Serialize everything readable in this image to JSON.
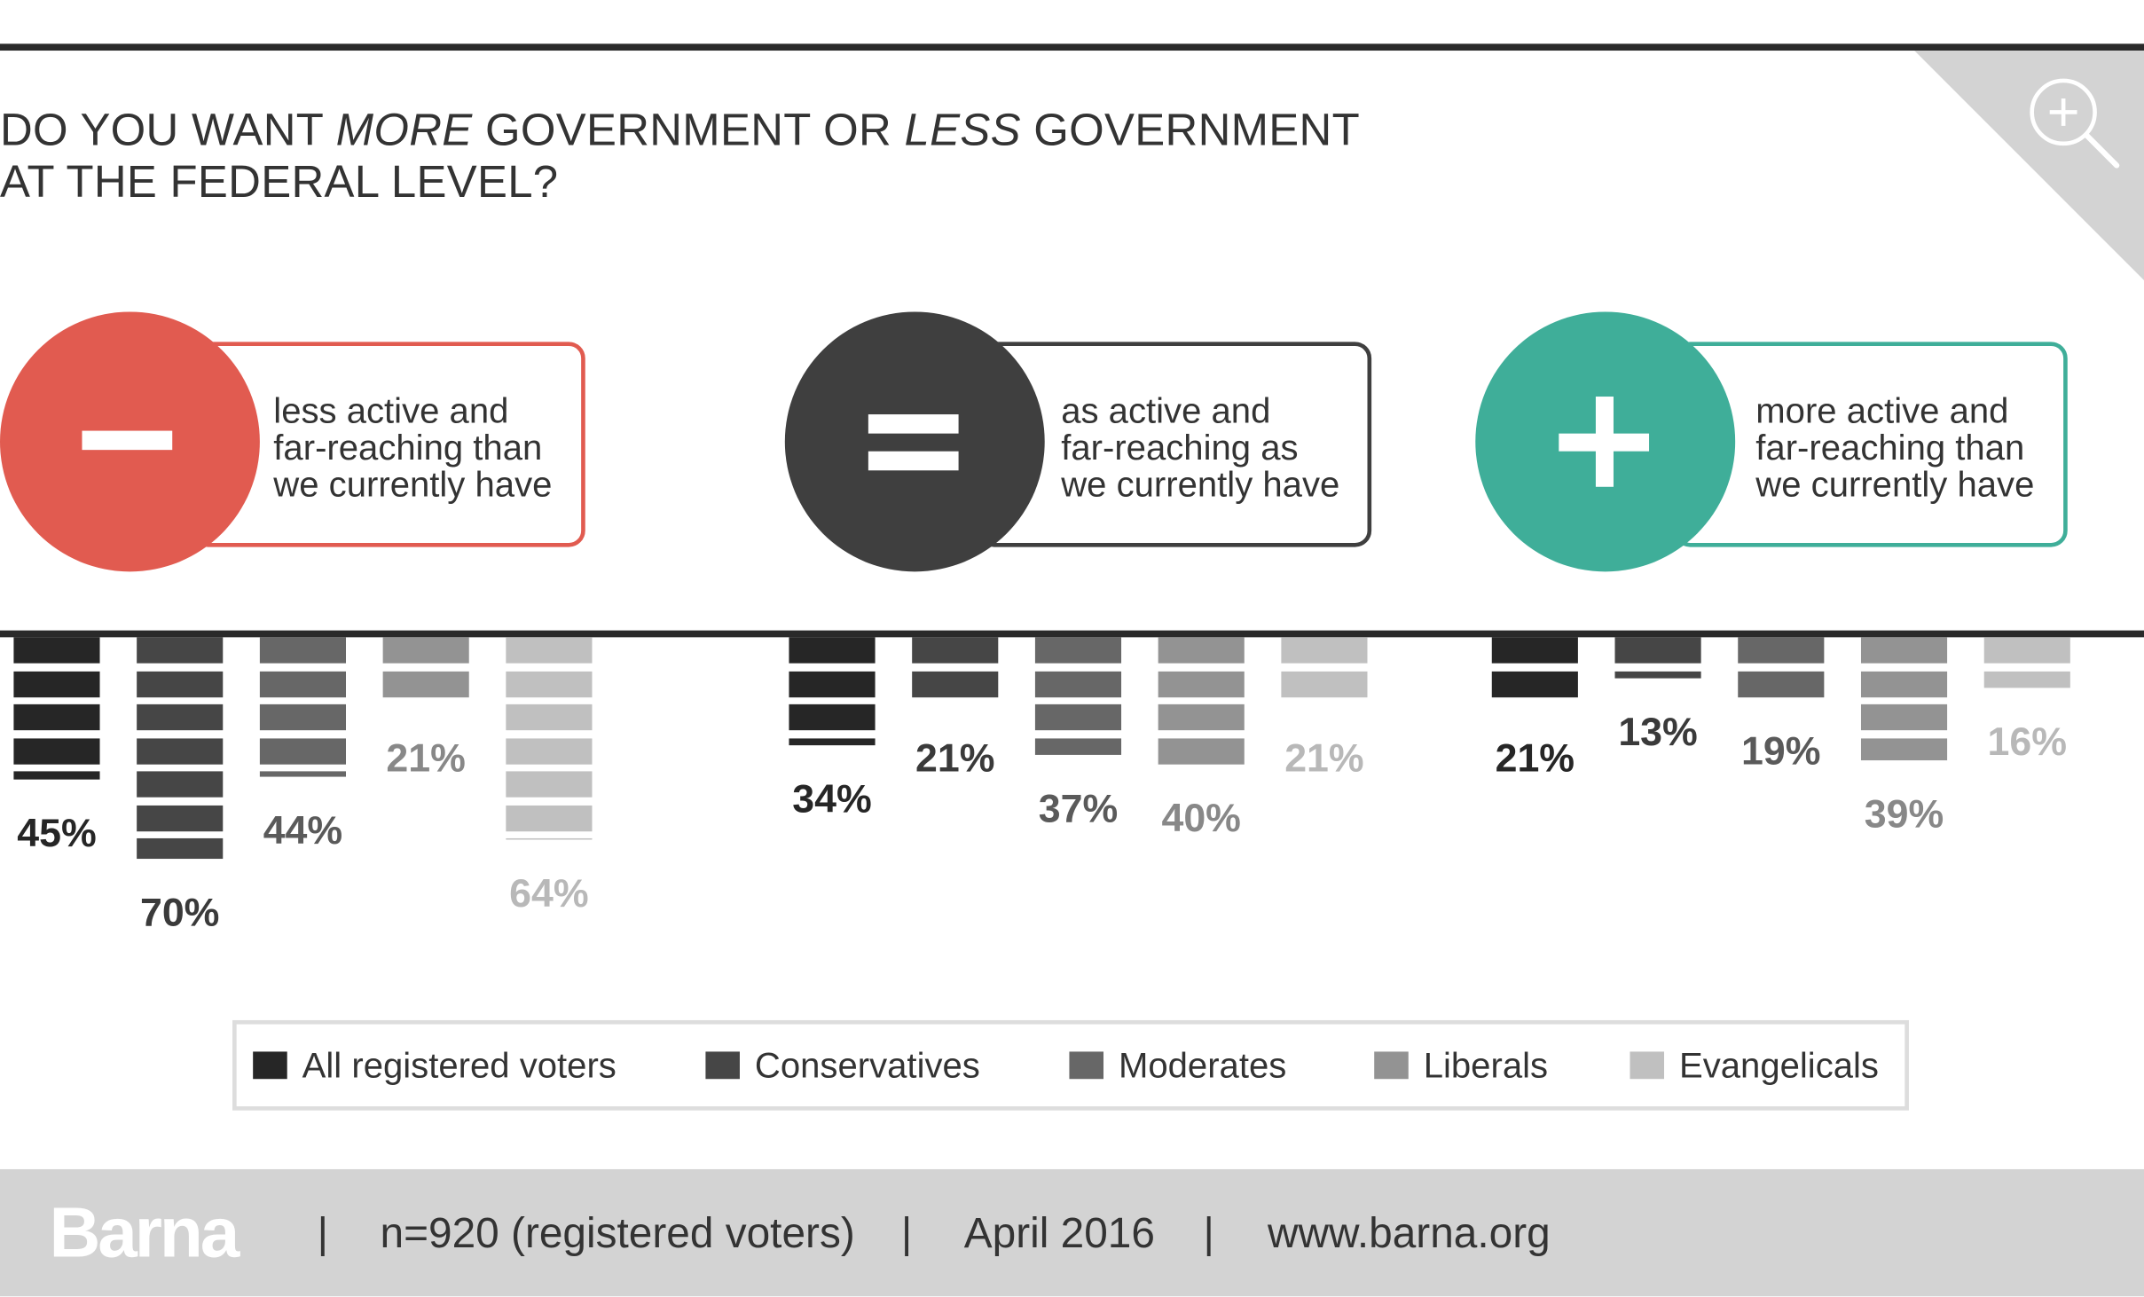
{
  "title": {
    "line1_a": "DO YOU WANT ",
    "line1_more": "MORE",
    "line1_b": " GOVERNMENT OR ",
    "line1_less": "LESS",
    "line1_c": " GOVERNMENT",
    "line2": "AT THE FEDERAL LEVEL?"
  },
  "icons": {
    "zoom": "zoom-in-icon",
    "minus": "minus-icon",
    "equals": "equals-icon",
    "plus": "plus-icon"
  },
  "colors": {
    "less": "#e15b50",
    "same": "#3f3f3f",
    "more": "#3fae99",
    "corner": "#d3d3d3"
  },
  "panels": [
    {
      "key": "less",
      "lines": [
        "less active and",
        "far-reaching than",
        "we currently have"
      ]
    },
    {
      "key": "same",
      "lines": [
        "as active and",
        "far-reaching as",
        "we currently have"
      ]
    },
    {
      "key": "more",
      "lines": [
        "more active and",
        "far-reaching than",
        "we currently have"
      ]
    }
  ],
  "chart_data": {
    "type": "bar",
    "title": "DO YOU WANT MORE GOVERNMENT OR LESS GOVERNMENT AT THE FEDERAL LEVEL?",
    "categories": [
      "less active and far-reaching than we currently have",
      "as active and far-reaching as we currently have",
      "more active and far-reaching than we currently have"
    ],
    "series": [
      {
        "name": "All registered voters",
        "color": "#262626",
        "values": [
          45,
          34,
          21
        ]
      },
      {
        "name": "Conservatives",
        "color": "#464646",
        "values": [
          70,
          21,
          13
        ]
      },
      {
        "name": "Moderates",
        "color": "#676767",
        "values": [
          44,
          37,
          19
        ]
      },
      {
        "name": "Liberals",
        "color": "#939393",
        "values": [
          21,
          40,
          39
        ]
      },
      {
        "name": "Evangelicals",
        "color": "#c0c0c0",
        "values": [
          64,
          21,
          16
        ]
      }
    ],
    "value_suffix": "%",
    "orientation": "bars hang downward from baseline",
    "legend": "bottom"
  },
  "footer": {
    "logo": "Barna",
    "sample": "n=920 (registered voters)",
    "date": "April 2016",
    "url": "www.barna.org",
    "separator": "|"
  }
}
